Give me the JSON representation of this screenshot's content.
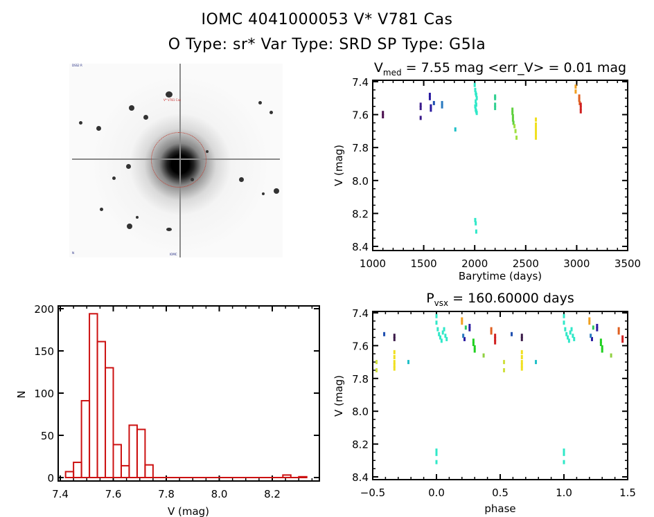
{
  "header": {
    "line1": "IOMC 4041000053    V* V781 Cas",
    "line2": "O Type: sr*  Var Type: SRD  SP Type: G5Ia"
  },
  "finder_chart": {
    "target_label": "V* V781 Cas",
    "corner_label_top_left": "DSS2 R",
    "corner_label_bottom_left": "N",
    "corner_label_bottom_center": "IOMC",
    "description": "grayscale sky image with red dotted aperture circle and crosshair on bright central star"
  },
  "chart_data": [
    {
      "id": "lightcurve",
      "type": "scatter",
      "title": "V_med = 7.55 mag <err_V> = 0.01 mag",
      "title_parts": {
        "base": "V",
        "sub": "med",
        "rest": " = 7.55 mag <err_V> = 0.01 mag"
      },
      "xlabel": "Barytime (days)",
      "ylabel": "V (mag)",
      "xlim": [
        1000,
        3500
      ],
      "ylim": [
        8.4,
        7.4
      ],
      "y_inverted": true,
      "xticks": [
        "1000",
        "1500",
        "2000",
        "2500",
        "3000",
        "3500"
      ],
      "yticks": [
        "7.4",
        "7.6",
        "7.8",
        "8.0",
        "8.2",
        "8.4"
      ],
      "groups": [
        {
          "color": "#4a0e4e",
          "x": [
            1100,
            1100
          ],
          "y": [
            7.59,
            7.61
          ]
        },
        {
          "color": "#3a1a8a",
          "x": [
            1470,
            1470,
            1470
          ],
          "y": [
            7.54,
            7.56,
            7.62
          ]
        },
        {
          "color": "#2a1aa0",
          "x": [
            1560,
            1560,
            1570,
            1570
          ],
          "y": [
            7.48,
            7.5,
            7.55,
            7.57
          ]
        },
        {
          "color": "#1f4fb0",
          "x": [
            1600
          ],
          "y": [
            7.53
          ]
        },
        {
          "color": "#2a7ac0",
          "x": [
            1680,
            1680
          ],
          "y": [
            7.53,
            7.55
          ]
        },
        {
          "color": "#20c0c8",
          "x": [
            1810
          ],
          "y": [
            7.69
          ]
        },
        {
          "color": "#30e8c8",
          "x": [
            2000,
            2005,
            2010,
            2015,
            2020,
            2010,
            2015,
            2005,
            2010,
            2015,
            2020,
            2005,
            2010,
            2015
          ],
          "y": [
            7.42,
            7.45,
            7.47,
            7.48,
            7.5,
            7.52,
            7.54,
            7.55,
            7.57,
            7.58,
            7.59,
            8.24,
            8.26,
            8.31
          ]
        },
        {
          "color": "#30d090",
          "x": [
            2200,
            2200,
            2200,
            2200
          ],
          "y": [
            7.49,
            7.5,
            7.54,
            7.56
          ]
        },
        {
          "color": "#60d040",
          "x": [
            2370,
            2370,
            2375,
            2375,
            2380
          ],
          "y": [
            7.57,
            7.59,
            7.61,
            7.63,
            7.65
          ]
        },
        {
          "color": "#a0e040",
          "x": [
            2390,
            2400,
            2410
          ],
          "y": [
            7.67,
            7.7,
            7.74
          ]
        },
        {
          "color": "#f0e020",
          "x": [
            2600,
            2600,
            2600,
            2600,
            2600,
            2600
          ],
          "y": [
            7.63,
            7.66,
            7.68,
            7.7,
            7.72,
            7.74
          ]
        },
        {
          "color": "#f0a020",
          "x": [
            2990,
            2990
          ],
          "y": [
            7.43,
            7.46
          ]
        },
        {
          "color": "#e06020",
          "x": [
            3025,
            3025,
            3030
          ],
          "y": [
            7.49,
            7.51,
            7.53
          ]
        },
        {
          "color": "#d02020",
          "x": [
            3040,
            3040,
            3040
          ],
          "y": [
            7.54,
            7.56,
            7.58
          ]
        }
      ]
    },
    {
      "id": "histogram",
      "type": "bar",
      "title": "",
      "xlabel": "V (mag)",
      "ylabel": "N",
      "xlim": [
        7.39,
        8.37
      ],
      "ylim": [
        0,
        200
      ],
      "xticks": [
        "7.4",
        "7.6",
        "7.8",
        "8.0",
        "8.2"
      ],
      "yticks": [
        "0",
        "50",
        "100",
        "150",
        "200"
      ],
      "bar_color": "#cc1111",
      "bin_width": 0.03,
      "bin_starts": [
        7.42,
        7.45,
        7.48,
        7.51,
        7.54,
        7.57,
        7.6,
        7.63,
        7.66,
        7.69,
        7.72,
        8.24,
        8.3
      ],
      "values": [
        7,
        18,
        91,
        194,
        161,
        130,
        39,
        14,
        62,
        57,
        15,
        3,
        1
      ]
    },
    {
      "id": "phased",
      "type": "scatter",
      "title": "P_vsx = 160.60000 days",
      "title_parts": {
        "base": "P",
        "sub": "vsx",
        "rest": " = 160.60000 days"
      },
      "xlabel": "phase",
      "ylabel": "V (mag)",
      "xlim": [
        -0.5,
        1.5
      ],
      "ylim": [
        8.4,
        7.4
      ],
      "y_inverted": true,
      "xticks": [
        "−0.5",
        "0.0",
        "0.5",
        "1.0",
        "1.5"
      ],
      "yticks": [
        "7.4",
        "7.6",
        "7.8",
        "8.0",
        "8.2",
        "8.4"
      ],
      "period_days": 160.6,
      "groups": [
        {
          "color": "#1f4fb0",
          "x": [
            -0.41,
            0.59
          ],
          "y": [
            7.53,
            7.53
          ]
        },
        {
          "color": "#3a1a48",
          "x": [
            -0.33,
            -0.33,
            0.67,
            0.67
          ],
          "y": [
            7.54,
            7.56,
            7.54,
            7.56
          ]
        },
        {
          "color": "#d0e040",
          "x": [
            -0.47,
            -0.47,
            0.53,
            0.53
          ],
          "y": [
            7.7,
            7.75,
            7.7,
            7.75
          ]
        },
        {
          "color": "#f0e020",
          "x": [
            -0.33,
            -0.33,
            -0.33,
            -0.33,
            -0.33,
            0.67,
            0.67,
            0.67,
            0.67,
            0.67
          ],
          "y": [
            7.64,
            7.67,
            7.7,
            7.72,
            7.74,
            7.64,
            7.67,
            7.7,
            7.72,
            7.74
          ]
        },
        {
          "color": "#20c0c8",
          "x": [
            -0.22,
            0.78
          ],
          "y": [
            7.7,
            7.7
          ]
        },
        {
          "color": "#30e8c8",
          "x": [
            0.0,
            0.0,
            0.01,
            0.02,
            0.03,
            0.04,
            0.05,
            0.06,
            0.07,
            0.08,
            0.0,
            0.0,
            0.0,
            1.0,
            1.0,
            1.01,
            1.02,
            1.03,
            1.04,
            1.05,
            1.06,
            1.07,
            1.08,
            1.0,
            1.0,
            1.0
          ],
          "y": [
            7.42,
            7.46,
            7.5,
            7.53,
            7.55,
            7.57,
            7.52,
            7.5,
            7.54,
            7.56,
            8.24,
            8.26,
            8.31,
            7.42,
            7.46,
            7.5,
            7.53,
            7.55,
            7.57,
            7.52,
            7.5,
            7.54,
            7.56,
            8.24,
            8.26,
            8.31
          ]
        },
        {
          "color": "#f0a020",
          "x": [
            0.2,
            0.2,
            1.2,
            1.2
          ],
          "y": [
            7.44,
            7.46,
            7.44,
            7.46
          ]
        },
        {
          "color": "#30c860",
          "x": [
            0.23,
            1.23
          ],
          "y": [
            7.49,
            7.49
          ]
        },
        {
          "color": "#2a1aa0",
          "x": [
            0.26,
            0.26,
            0.22,
            1.26,
            1.26,
            1.22
          ],
          "y": [
            7.48,
            7.5,
            7.56,
            7.48,
            7.5,
            7.56
          ]
        },
        {
          "color": "#2a7ac0",
          "x": [
            0.21,
            1.21
          ],
          "y": [
            7.54,
            7.54
          ]
        },
        {
          "color": "#20d020",
          "x": [
            0.29,
            0.29,
            0.3,
            0.3,
            1.29,
            1.29,
            1.3,
            1.3
          ],
          "y": [
            7.57,
            7.59,
            7.61,
            7.63,
            7.57,
            7.59,
            7.61,
            7.63
          ]
        },
        {
          "color": "#90d040",
          "x": [
            0.37,
            1.37
          ],
          "y": [
            7.66,
            7.66
          ]
        },
        {
          "color": "#e06020",
          "x": [
            0.43,
            0.43,
            1.43,
            1.43
          ],
          "y": [
            7.5,
            7.52,
            7.5,
            7.52
          ]
        },
        {
          "color": "#d02020",
          "x": [
            0.46,
            0.46,
            0.46,
            1.46,
            1.46
          ],
          "y": [
            7.54,
            7.56,
            7.58,
            7.55,
            7.57
          ]
        }
      ]
    }
  ]
}
